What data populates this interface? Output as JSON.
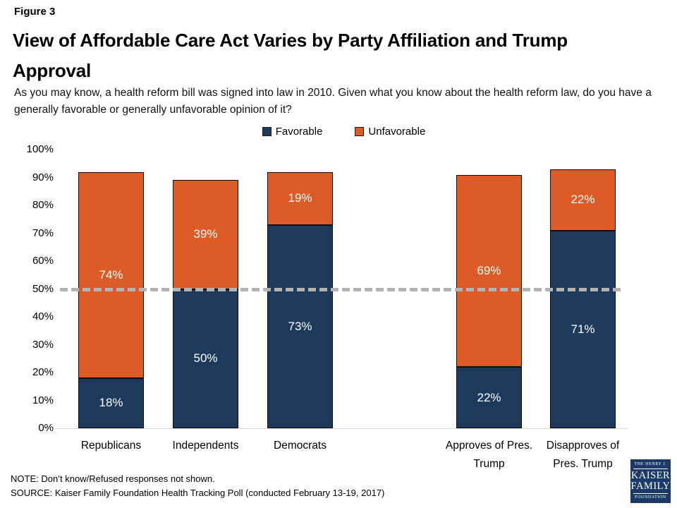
{
  "header": {
    "figure_label": "Figure 3",
    "title": "View of Affordable Care Act Varies by Party Affiliation and Trump Approval",
    "subtitle": "As you may know, a health reform bill was signed into law in 2010. Given what you know about the health reform law, do you have a generally favorable or generally unfavorable opinion of it?"
  },
  "chart_data": {
    "type": "bar",
    "stacked": true,
    "categories": [
      "Republicans",
      "Independents",
      "Democrats",
      "Approves of Pres. Trump",
      "Disapproves of Pres. Trump"
    ],
    "series": [
      {
        "name": "Favorable",
        "color": "#1d3a5c",
        "values": [
          18,
          50,
          73,
          22,
          71
        ]
      },
      {
        "name": "Unfavorable",
        "color": "#dd5b26",
        "values": [
          74,
          39,
          19,
          69,
          22
        ]
      }
    ],
    "data_label_suffix": "%",
    "y_axis": {
      "min": 0,
      "max": 100,
      "tick_step": 10,
      "tick_labels": [
        "0%",
        "10%",
        "20%",
        "30%",
        "40%",
        "50%",
        "60%",
        "70%",
        "80%",
        "90%",
        "100%"
      ]
    },
    "reference_line": {
      "value": 50,
      "style": "dashed",
      "color": "#b3b3b3"
    },
    "legend_position": "top",
    "grid": false
  },
  "footer": {
    "note": "NOTE: Don’t know/Refused responses not shown.",
    "source": "SOURCE: Kaiser Family Foundation Health Tracking Poll (conducted February 13-19, 2017)"
  },
  "logo": {
    "line1": "THE HENRY J.",
    "line2": "KAISER",
    "line3": "FAMILY",
    "line4": "FOUNDATION",
    "bg_color": "#1b3a67"
  }
}
